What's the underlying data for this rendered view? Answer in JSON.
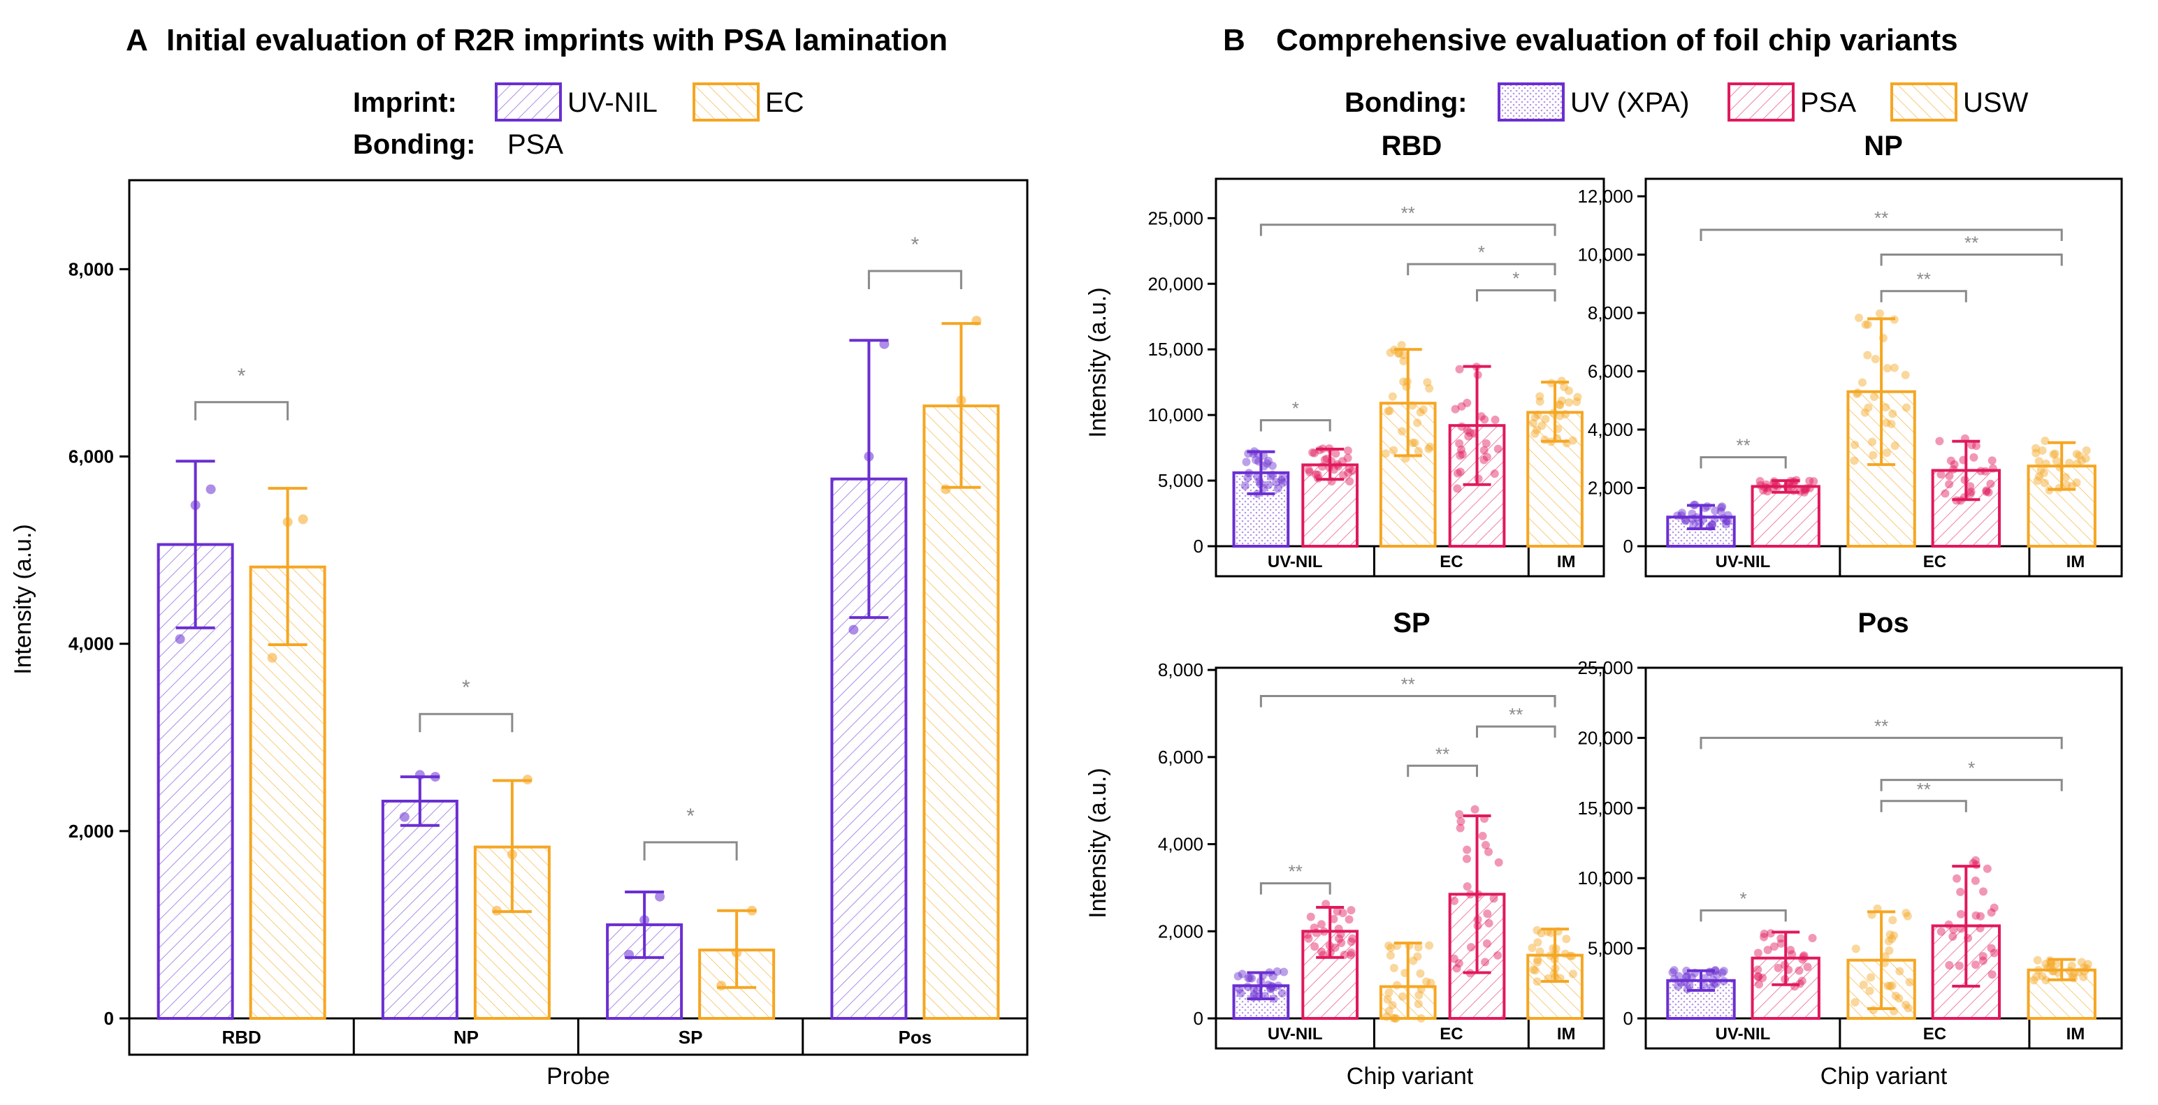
{
  "colors": {
    "uvnil": "#6a2fd1",
    "ec": "#f5a623",
    "psa": "#e0195c",
    "axis": "#000000",
    "sig": "#8a8a8a"
  },
  "panel_a": {
    "letter": "A",
    "title": "Initial evaluation of R2R imprints with PSA lamination",
    "legend_imprint_label": "Imprint:",
    "legend_bonding_label": "Bonding:",
    "legend_bonding_value": "PSA",
    "legend_items": [
      "UV-NIL",
      "EC"
    ]
  },
  "panel_b": {
    "letter": "B",
    "title": "Comprehensive evaluation of foil chip variants",
    "legend_bonding_label": "Bonding:",
    "legend_items": [
      "UV (XPA)",
      "PSA",
      "USW"
    ]
  },
  "chart_data": [
    {
      "id": "A",
      "type": "bar",
      "title": "",
      "xlabel": "Probe",
      "ylabel": "Intensity (a.u.)",
      "ylim": [
        0,
        8950
      ],
      "yticks": [
        0,
        2000,
        4000,
        6000,
        8000
      ],
      "ytick_labels": [
        "0",
        "2,000",
        "4,000",
        "6,000",
        "8,000"
      ],
      "groups": [
        "RBD",
        "NP",
        "SP",
        "Pos"
      ],
      "series": [
        {
          "name": "UV-NIL",
          "color_key": "uvnil",
          "values": [
            5060,
            2320,
            1000,
            5760
          ],
          "err_low": [
            4170,
            2060,
            650,
            4280
          ],
          "err_high": [
            5950,
            2580,
            1350,
            7240
          ],
          "points": [
            [
              4050,
              5480,
              5650
            ],
            [
              2150,
              2600,
              2580
            ],
            [
              680,
              1050,
              1300
            ],
            [
              4150,
              6000,
              7200
            ]
          ]
        },
        {
          "name": "EC",
          "color_key": "ec",
          "values": [
            4820,
            1830,
            730,
            6540
          ],
          "err_low": [
            3990,
            1140,
            330,
            5670
          ],
          "err_high": [
            5660,
            2540,
            1150,
            7420
          ],
          "points": [
            [
              3850,
              5300,
              5330
            ],
            [
              1150,
              1750,
              2550
            ],
            [
              350,
              700,
              1150
            ],
            [
              5650,
              6600,
              7450
            ]
          ]
        }
      ],
      "significance": [
        {
          "group": 0,
          "y": 6580,
          "label": "*"
        },
        {
          "group": 1,
          "y": 3250,
          "label": "*"
        },
        {
          "group": 2,
          "y": 1880,
          "label": "*"
        },
        {
          "group": 3,
          "y": 7980,
          "label": "*"
        }
      ]
    },
    {
      "id": "RBD",
      "type": "bar",
      "title": "RBD",
      "xlabel": "",
      "ylabel": "Intensity (a.u.)",
      "ylim": [
        0,
        28000
      ],
      "yticks": [
        0,
        5000,
        10000,
        15000,
        20000,
        25000
      ],
      "ytick_labels": [
        "0",
        "5,000",
        "10,000",
        "15,000",
        "20,000",
        "25,000"
      ],
      "groups": [
        "UV-NIL",
        "EC",
        "IM"
      ],
      "bars": [
        {
          "label": "UV (XPA)",
          "group": 0,
          "value": 5600,
          "err_low": 4000,
          "err_high": 7200
        },
        {
          "label": "PSA",
          "group": 0,
          "value": 6200,
          "err_low": 5100,
          "err_high": 7400
        },
        {
          "label": "USW",
          "group": 1,
          "value": 10900,
          "err_low": 6900,
          "err_high": 15000
        },
        {
          "label": "PSA",
          "group": 1,
          "value": 9200,
          "err_low": 4700,
          "err_high": 13700
        },
        {
          "label": "USW",
          "group": 2,
          "value": 10200,
          "err_low": 8000,
          "err_high": 12500
        }
      ],
      "significance": [
        {
          "from": 0,
          "to": 1,
          "y": 9600,
          "label": "*"
        },
        {
          "from": 3,
          "to": 4,
          "y": 19500,
          "label": "*"
        },
        {
          "from": 2,
          "to": 4,
          "y": 21500,
          "label": "*"
        },
        {
          "from": 0,
          "to": 4,
          "y": 24500,
          "label": "**"
        }
      ]
    },
    {
      "id": "NP",
      "type": "bar",
      "title": "NP",
      "xlabel": "",
      "ylabel": "",
      "ylim": [
        0,
        12600
      ],
      "yticks": [
        0,
        2000,
        4000,
        6000,
        8000,
        10000,
        12000
      ],
      "ytick_labels": [
        "0",
        "2,000",
        "4,000",
        "6,000",
        "8,000",
        "10,000",
        "12,000"
      ],
      "groups": [
        "UV-NIL",
        "EC",
        "IM"
      ],
      "bars": [
        {
          "label": "UV (XPA)",
          "group": 0,
          "value": 1000,
          "err_low": 600,
          "err_high": 1400
        },
        {
          "label": "PSA",
          "group": 0,
          "value": 2050,
          "err_low": 1850,
          "err_high": 2250
        },
        {
          "label": "USW",
          "group": 1,
          "value": 5300,
          "err_low": 2800,
          "err_high": 7800
        },
        {
          "label": "PSA",
          "group": 1,
          "value": 2600,
          "err_low": 1600,
          "err_high": 3600
        },
        {
          "label": "USW",
          "group": 2,
          "value": 2750,
          "err_low": 1950,
          "err_high": 3550
        }
      ],
      "significance": [
        {
          "from": 0,
          "to": 1,
          "y": 3050,
          "label": "**"
        },
        {
          "from": 2,
          "to": 3,
          "y": 8750,
          "label": "**"
        },
        {
          "from": 2,
          "to": 4,
          "y": 10000,
          "label": "**"
        },
        {
          "from": 0,
          "to": 4,
          "y": 10850,
          "label": "**"
        }
      ]
    },
    {
      "id": "SP",
      "type": "bar",
      "title": "SP",
      "xlabel": "Chip variant",
      "ylabel": "Intensity (a.u.)",
      "ylim": [
        0,
        8050
      ],
      "yticks": [
        0,
        2000,
        4000,
        6000,
        8000
      ],
      "ytick_labels": [
        "0",
        "2,000",
        "4,000",
        "6,000",
        "8,000"
      ],
      "groups": [
        "UV-NIL",
        "EC",
        "IM"
      ],
      "bars": [
        {
          "label": "UV (XPA)",
          "group": 0,
          "value": 750,
          "err_low": 450,
          "err_high": 1050
        },
        {
          "label": "PSA",
          "group": 0,
          "value": 2000,
          "err_low": 1400,
          "err_high": 2550
        },
        {
          "label": "USW",
          "group": 1,
          "value": 730,
          "err_low": 0,
          "err_high": 1730
        },
        {
          "label": "PSA",
          "group": 1,
          "value": 2850,
          "err_low": 1050,
          "err_high": 4650
        },
        {
          "label": "USW",
          "group": 2,
          "value": 1450,
          "err_low": 850,
          "err_high": 2050
        }
      ],
      "significance": [
        {
          "from": 0,
          "to": 1,
          "y": 3100,
          "label": "**"
        },
        {
          "from": 2,
          "to": 3,
          "y": 5800,
          "label": "**"
        },
        {
          "from": 3,
          "to": 4,
          "y": 6700,
          "label": "**"
        },
        {
          "from": 0,
          "to": 4,
          "y": 7400,
          "label": "**"
        }
      ]
    },
    {
      "id": "Pos",
      "type": "bar",
      "title": "Pos",
      "xlabel": "Chip variant",
      "ylabel": "",
      "ylim": [
        0,
        25000
      ],
      "yticks": [
        0,
        5000,
        10000,
        15000,
        20000,
        25000
      ],
      "ytick_labels": [
        "0",
        "5,000",
        "10,000",
        "15,000",
        "20,000",
        "25,000"
      ],
      "groups": [
        "UV-NIL",
        "EC",
        "IM"
      ],
      "bars": [
        {
          "label": "UV (XPA)",
          "group": 0,
          "value": 2700,
          "err_low": 2000,
          "err_high": 3400
        },
        {
          "label": "PSA",
          "group": 0,
          "value": 4300,
          "err_low": 2400,
          "err_high": 6150
        },
        {
          "label": "USW",
          "group": 1,
          "value": 4150,
          "err_low": 700,
          "err_high": 7600
        },
        {
          "label": "PSA",
          "group": 1,
          "value": 6600,
          "err_low": 2300,
          "err_high": 10850
        },
        {
          "label": "USW",
          "group": 2,
          "value": 3450,
          "err_low": 2750,
          "err_high": 4200
        }
      ],
      "significance": [
        {
          "from": 0,
          "to": 1,
          "y": 7700,
          "label": "*"
        },
        {
          "from": 2,
          "to": 3,
          "y": 15500,
          "label": "**"
        },
        {
          "from": 2,
          "to": 4,
          "y": 17000,
          "label": "*"
        },
        {
          "from": 0,
          "to": 4,
          "y": 20000,
          "label": "**"
        }
      ]
    }
  ]
}
